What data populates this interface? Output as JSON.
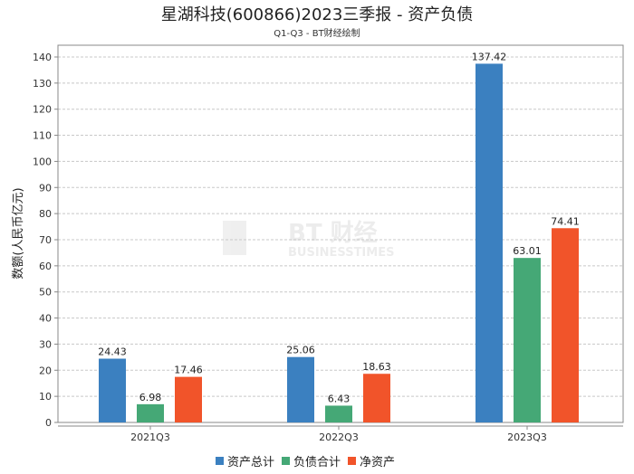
{
  "chart_data": {
    "type": "bar",
    "title": "星湖科技(600866)2023三季报 - 资产负债",
    "subtitle": "Q1-Q3 - BT财经绘制",
    "ylabel": "数额(人民币亿元)",
    "xlabel": "",
    "ylim": [
      0,
      144.5
    ],
    "yticks": [
      0,
      10,
      20,
      30,
      40,
      50,
      60,
      70,
      80,
      90,
      100,
      110,
      120,
      130,
      140
    ],
    "grid": true,
    "legend_position": "bottom",
    "categories": [
      "2021Q3",
      "2022Q3",
      "2023Q3"
    ],
    "series": [
      {
        "name": "资产总计",
        "color": "#3b80c0",
        "values": [
          24.43,
          25.06,
          137.42
        ]
      },
      {
        "name": "负债合计",
        "color": "#45a876",
        "values": [
          6.98,
          6.43,
          63.01
        ]
      },
      {
        "name": "净资产",
        "color": "#f1542a",
        "values": [
          17.46,
          18.63,
          74.41
        ]
      }
    ],
    "watermark": "BT财经 BUSINESSTIMES"
  }
}
